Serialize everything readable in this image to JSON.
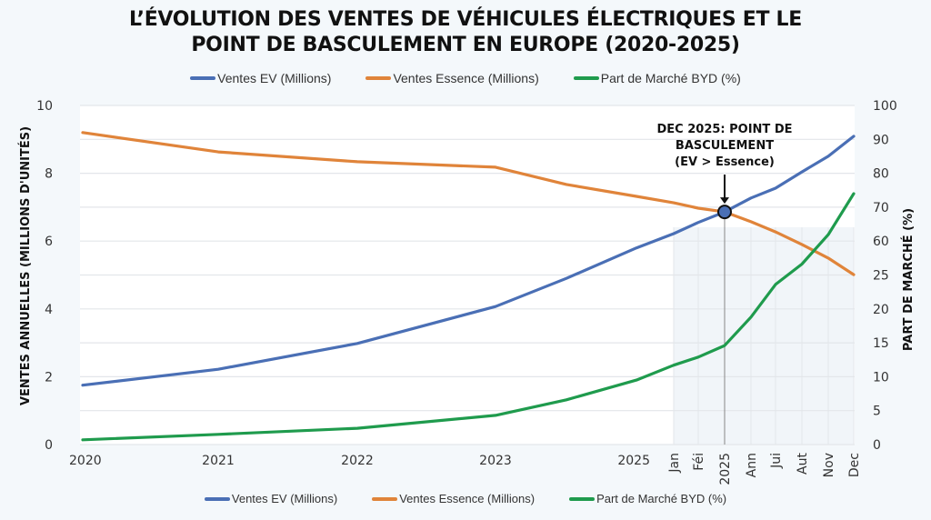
{
  "chart_data": {
    "type": "line",
    "title_lines": [
      "L’ÉVOLUTION DES VENTES DE VÉHICULES ÉLECTRIQUES ET LE",
      "POINT DE BASCULEMENT EN EUROPE (2020-2025)"
    ],
    "x_labels": [
      "2020",
      "2021",
      "2022",
      "2023",
      "",
      "2025",
      "Jan",
      "Féi",
      "2025",
      "Ann",
      "Jui",
      "Aut",
      "Nov",
      "Dec"
    ],
    "x_label_rotated": [
      false,
      false,
      false,
      false,
      false,
      false,
      true,
      true,
      true,
      true,
      true,
      true,
      true,
      true
    ],
    "ylabel_left": "VENTES ANNUELLES (MILLIONS D'UNITÉS)",
    "ylabel_right": "PART DE MARCHÉ (%)",
    "ylim_left": [
      0,
      10
    ],
    "yticks_left": [
      "0",
      "2",
      "4",
      "6",
      "8",
      "10"
    ],
    "yticks_right": [
      "0",
      "5",
      "10",
      "15",
      "20",
      "25",
      "60",
      "70",
      "80",
      "90",
      "100"
    ],
    "grid": true,
    "legend_position": "top and bottom",
    "series": [
      {
        "name": "Ventes EV (Millions)",
        "axis": "left",
        "color": "#4a6fb5",
        "values": [
          1.75,
          2.22,
          2.98,
          4.07,
          4.9,
          5.8,
          6.22,
          6.55,
          6.86,
          7.27,
          7.56,
          8.04,
          8.5,
          9.09
        ]
      },
      {
        "name": "Ventes Essence (Millions)",
        "axis": "left",
        "color": "#e0843a",
        "values": [
          9.2,
          8.63,
          8.34,
          8.18,
          7.67,
          7.32,
          7.13,
          6.97,
          6.86,
          6.57,
          6.27,
          5.9,
          5.5,
          5.01
        ]
      },
      {
        "name": "Part de Marché BYD (%)",
        "axis": "right",
        "color": "#1f9b4d",
        "values": [
          0.7,
          1.5,
          2.4,
          4.3,
          6.6,
          9.5,
          11.7,
          12.9,
          14.6,
          18.8,
          23.6,
          36.3,
          61.9,
          74
        ]
      }
    ],
    "annotation": {
      "lines": [
        "DEC 2025: POINT DE",
        "BASCULEMENT",
        "(EV > Essence)"
      ],
      "x_index": 8,
      "value": 6.86
    }
  }
}
